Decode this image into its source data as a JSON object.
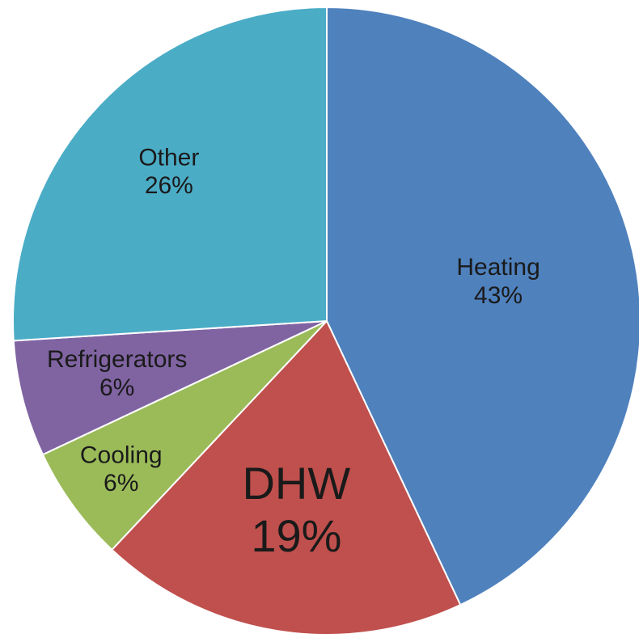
{
  "chart_data": {
    "type": "pie",
    "categories": [
      "Heating",
      "DHW",
      "Cooling",
      "Refrigerators",
      "Other"
    ],
    "values": [
      43,
      19,
      6,
      6,
      26
    ],
    "value_labels": [
      "43%",
      "19%",
      "6%",
      "6%",
      "26%"
    ],
    "colors": [
      "#4f81bd",
      "#c0504d",
      "#9bbb59",
      "#8064a2",
      "#4bacc6"
    ]
  }
}
